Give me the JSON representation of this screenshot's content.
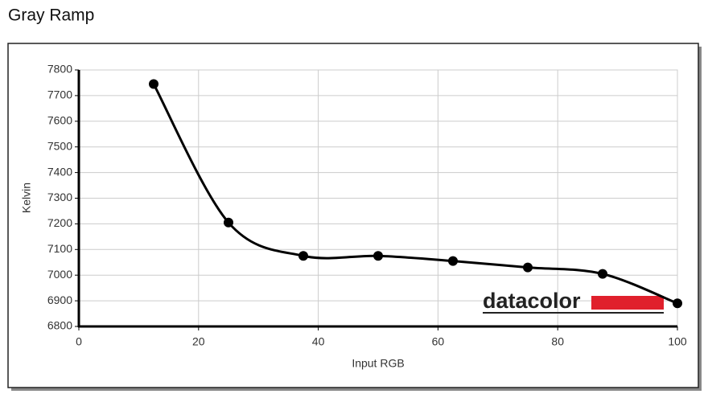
{
  "chart_data": {
    "type": "line",
    "title": "Gray Ramp",
    "xlabel": "Input RGB",
    "ylabel": "Kelvin",
    "logo": "datacolor",
    "x": [
      12.5,
      25,
      37.5,
      50,
      62.5,
      75,
      87.5,
      100
    ],
    "series": [
      {
        "color": "#000000",
        "values": [
          7745,
          7205,
          7075,
          7075,
          7055,
          7030,
          7005,
          6890
        ]
      }
    ],
    "xlim": [
      0,
      100
    ],
    "xticks": [
      0,
      20,
      40,
      60,
      80,
      100
    ],
    "ylim": [
      6800,
      7800
    ],
    "yticks": [
      6800,
      6900,
      7000,
      7100,
      7200,
      7300,
      7400,
      7500,
      7600,
      7700,
      7800
    ],
    "grid": true
  }
}
